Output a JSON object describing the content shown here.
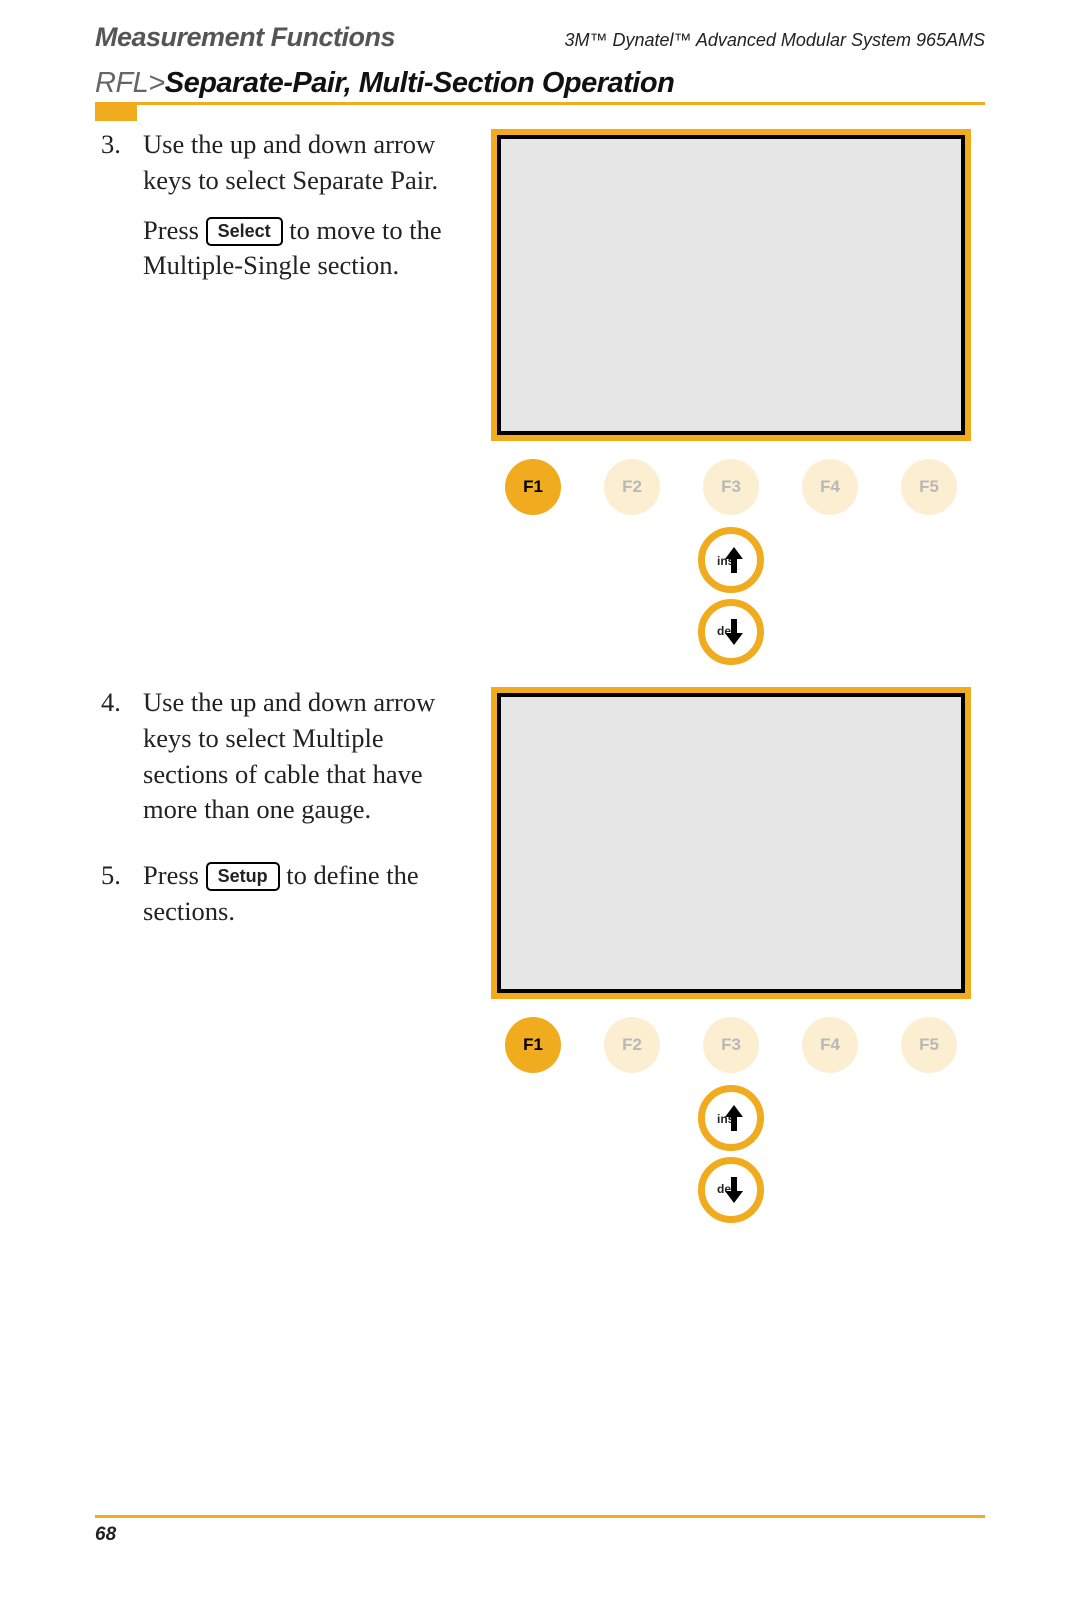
{
  "header": {
    "left": "Measurement Functions",
    "right": "3M™ Dynatel™ Advanced Modular System 965AMS"
  },
  "section": {
    "prefix": "RFL>",
    "title": "Separate-Pair, Multi-Section Operation"
  },
  "buttons": {
    "select": "Select",
    "setup": "Setup"
  },
  "steps_block1": [
    {
      "num": "3.",
      "paras": [
        [
          "Use the up and down arrow keys to select Separate Pair."
        ],
        [
          "Press ",
          {
            "btn": "select"
          },
          " to move to the Multiple-Single section."
        ]
      ]
    }
  ],
  "steps_block2": [
    {
      "num": "4.",
      "paras": [
        [
          "Use the up and down arrow keys to select Multiple sections of cable that have more than one gauge."
        ]
      ]
    },
    {
      "num": "5.",
      "paras": [
        [
          "Press ",
          {
            "btn": "setup"
          },
          " to define the sections."
        ]
      ]
    }
  ],
  "device": {
    "fkeys": [
      {
        "label": "F1",
        "active": true
      },
      {
        "label": "F2",
        "active": false
      },
      {
        "label": "F3",
        "active": false
      },
      {
        "label": "F4",
        "active": false
      },
      {
        "label": "F5",
        "active": false
      }
    ],
    "arrows": {
      "up_label": "ins",
      "down_label": "del"
    }
  },
  "colors": {
    "accent": "#f0ab1e",
    "accent_light": "#fcefd1",
    "screen_bg": "#e6e6e6",
    "gray_text": "#b8b8b8"
  },
  "page_number": "68"
}
